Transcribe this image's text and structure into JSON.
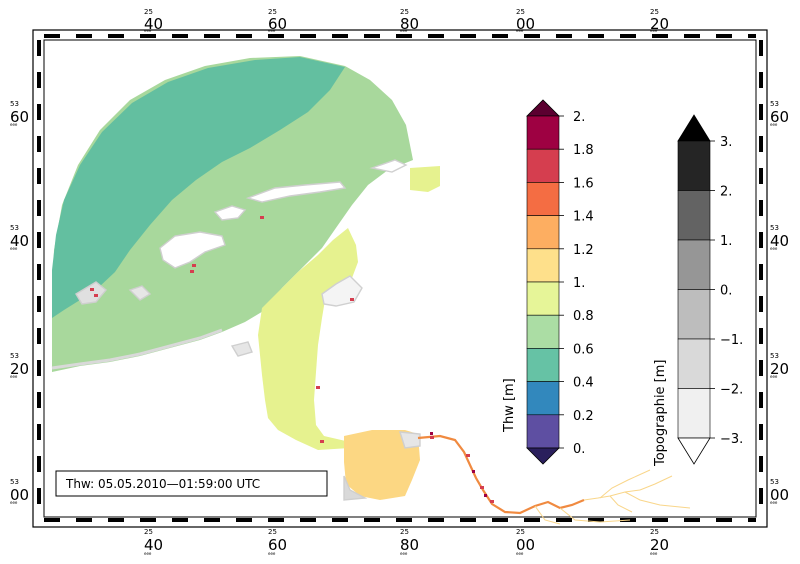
{
  "map": {
    "timestamp": "Thw: 05.05.2010—01:59:00 UTC",
    "grid_top_small": [
      "25",
      "25",
      "25",
      "25",
      "25",
      "25"
    ],
    "grid_top_main": [
      "40",
      "60",
      "80",
      "00",
      "20"
    ],
    "grid_top_mini": [
      "eee",
      "eee",
      "eee",
      "eee",
      "eee"
    ],
    "grid_side_small": [
      "53",
      "53",
      "53",
      "53"
    ],
    "grid_side_main": [
      "60",
      "40",
      "20",
      "00"
    ],
    "grid_side_mini": [
      "eee",
      "eee",
      "eee",
      "eee"
    ],
    "colors": {
      "deep_sea": "#63BFA0",
      "mid_sea": "#A8D89C",
      "shallow": "#E6F28F",
      "estuary": "#FCD783",
      "river": "#F08A40",
      "tributary": "#F9D68A",
      "land_gray": "#D9D9D9",
      "red_patch": "#D53E4F",
      "dark_patch": "#9E0142"
    }
  },
  "legend_thw": {
    "title": "Thw [m]",
    "ticks": [
      "2.",
      "1.8",
      "1.6",
      "1.4",
      "1.2",
      "1.",
      "0.8",
      "0.6",
      "0.4",
      "0.2",
      "0."
    ],
    "colors": [
      "#9E0142",
      "#D53E4F",
      "#F46D43",
      "#FDAE61",
      "#FEE08B",
      "#E6F598",
      "#ABDDA4",
      "#66C2A5",
      "#3288BD",
      "#5E4FA2"
    ],
    "top_arrow_color": "#5B0030",
    "bottom_arrow_color": "#2A1F5C"
  },
  "legend_topo": {
    "title": "Topographie [m]",
    "ticks": [
      "3.",
      "2.",
      "1.",
      "0.",
      "−1.",
      "−2.",
      "−3."
    ],
    "colors": [
      "#252525",
      "#636363",
      "#969696",
      "#BDBDBD",
      "#D9D9D9",
      "#F0F0F0"
    ],
    "top_arrow_color": "#000000",
    "bottom_arrow_color": "#FFFFFF"
  }
}
